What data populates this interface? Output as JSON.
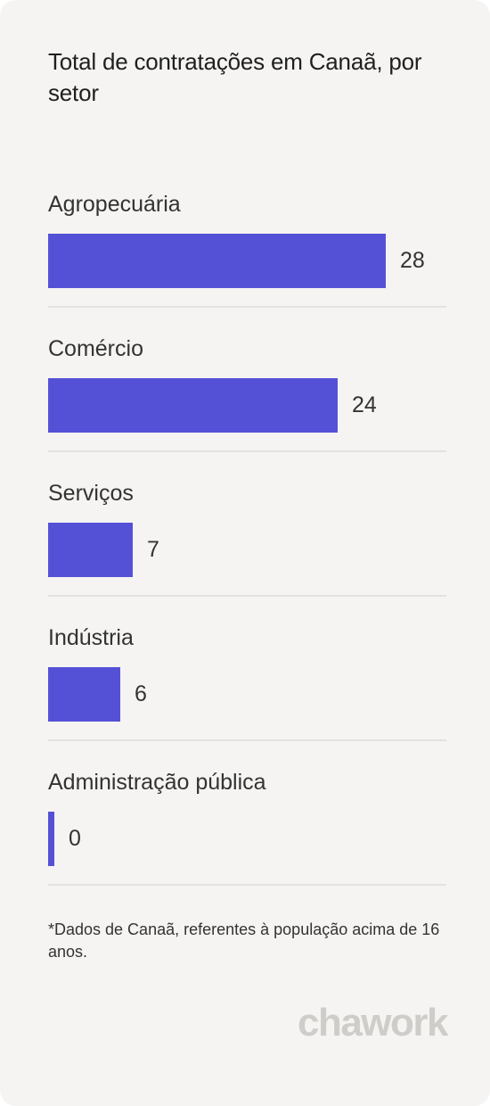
{
  "chart_data": {
    "type": "bar",
    "orientation": "horizontal",
    "title": "Total de contratações em Canaã, por setor",
    "categories": [
      "Agropecuária",
      "Comércio",
      "Serviços",
      "Indústria",
      "Administração pública"
    ],
    "values": [
      28,
      24,
      7,
      6,
      0
    ],
    "value_labels": [
      "28",
      "24",
      "7",
      "6",
      "0"
    ],
    "xlim": [
      0,
      28
    ],
    "grid": false,
    "legend": "none",
    "bar_color": "#5551d7"
  },
  "footnote": "*Dados de Canaã, referentes à população acima de 16 anos.",
  "brand": {
    "logo_text": "chawork"
  }
}
